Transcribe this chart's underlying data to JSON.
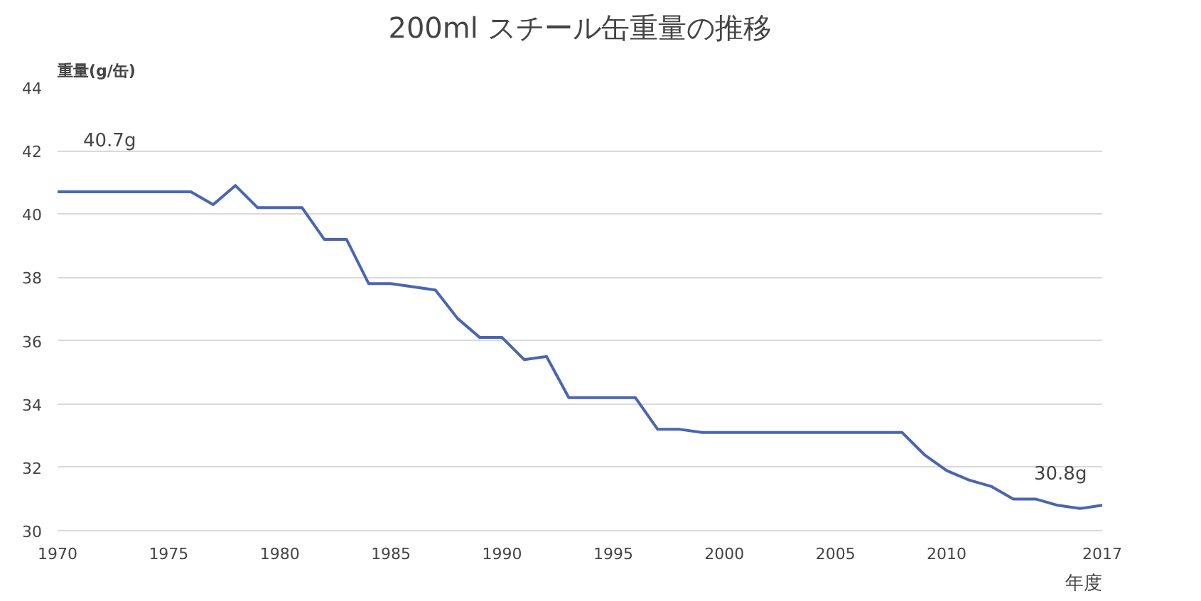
{
  "chart_data": {
    "type": "line",
    "title": "200ml スチール缶重量の推移",
    "ylabel": "重量(g/缶)",
    "xlabel": "年度",
    "x": [
      1970,
      1971,
      1972,
      1973,
      1974,
      1975,
      1976,
      1977,
      1978,
      1979,
      1980,
      1981,
      1982,
      1983,
      1984,
      1985,
      1986,
      1987,
      1988,
      1989,
      1990,
      1991,
      1992,
      1993,
      1994,
      1995,
      1996,
      1997,
      1998,
      1999,
      2000,
      2001,
      2002,
      2003,
      2004,
      2005,
      2006,
      2007,
      2008,
      2009,
      2010,
      2011,
      2012,
      2013,
      2014,
      2015,
      2016,
      2017
    ],
    "series": [
      {
        "color": "#4a66b0",
        "values": [
          40.7,
          40.7,
          40.7,
          40.7,
          40.7,
          40.7,
          40.7,
          40.3,
          40.9,
          40.2,
          40.2,
          40.2,
          39.2,
          39.2,
          37.8,
          37.8,
          37.7,
          37.6,
          36.7,
          36.1,
          36.1,
          35.4,
          35.5,
          34.2,
          34.2,
          34.2,
          34.2,
          33.2,
          33.2,
          33.1,
          33.1,
          33.1,
          33.1,
          33.1,
          33.1,
          33.1,
          33.1,
          33.1,
          33.1,
          32.4,
          31.9,
          31.6,
          31.4,
          31.0,
          31.0,
          30.8,
          30.7,
          30.8
        ]
      }
    ],
    "xlim": [
      1970,
      2017
    ],
    "xticks": [
      1970,
      1975,
      1980,
      1985,
      1990,
      1995,
      2000,
      2005,
      2010,
      2017
    ],
    "ylim": [
      30,
      44
    ],
    "yticks": [
      30,
      32,
      34,
      36,
      38,
      40,
      42,
      44
    ],
    "grid": "y",
    "annotations": [
      {
        "text": "40.7g",
        "x": 1970,
        "y": 40.7
      },
      {
        "text": "30.8g",
        "x": 2017,
        "y": 30.8
      }
    ]
  }
}
